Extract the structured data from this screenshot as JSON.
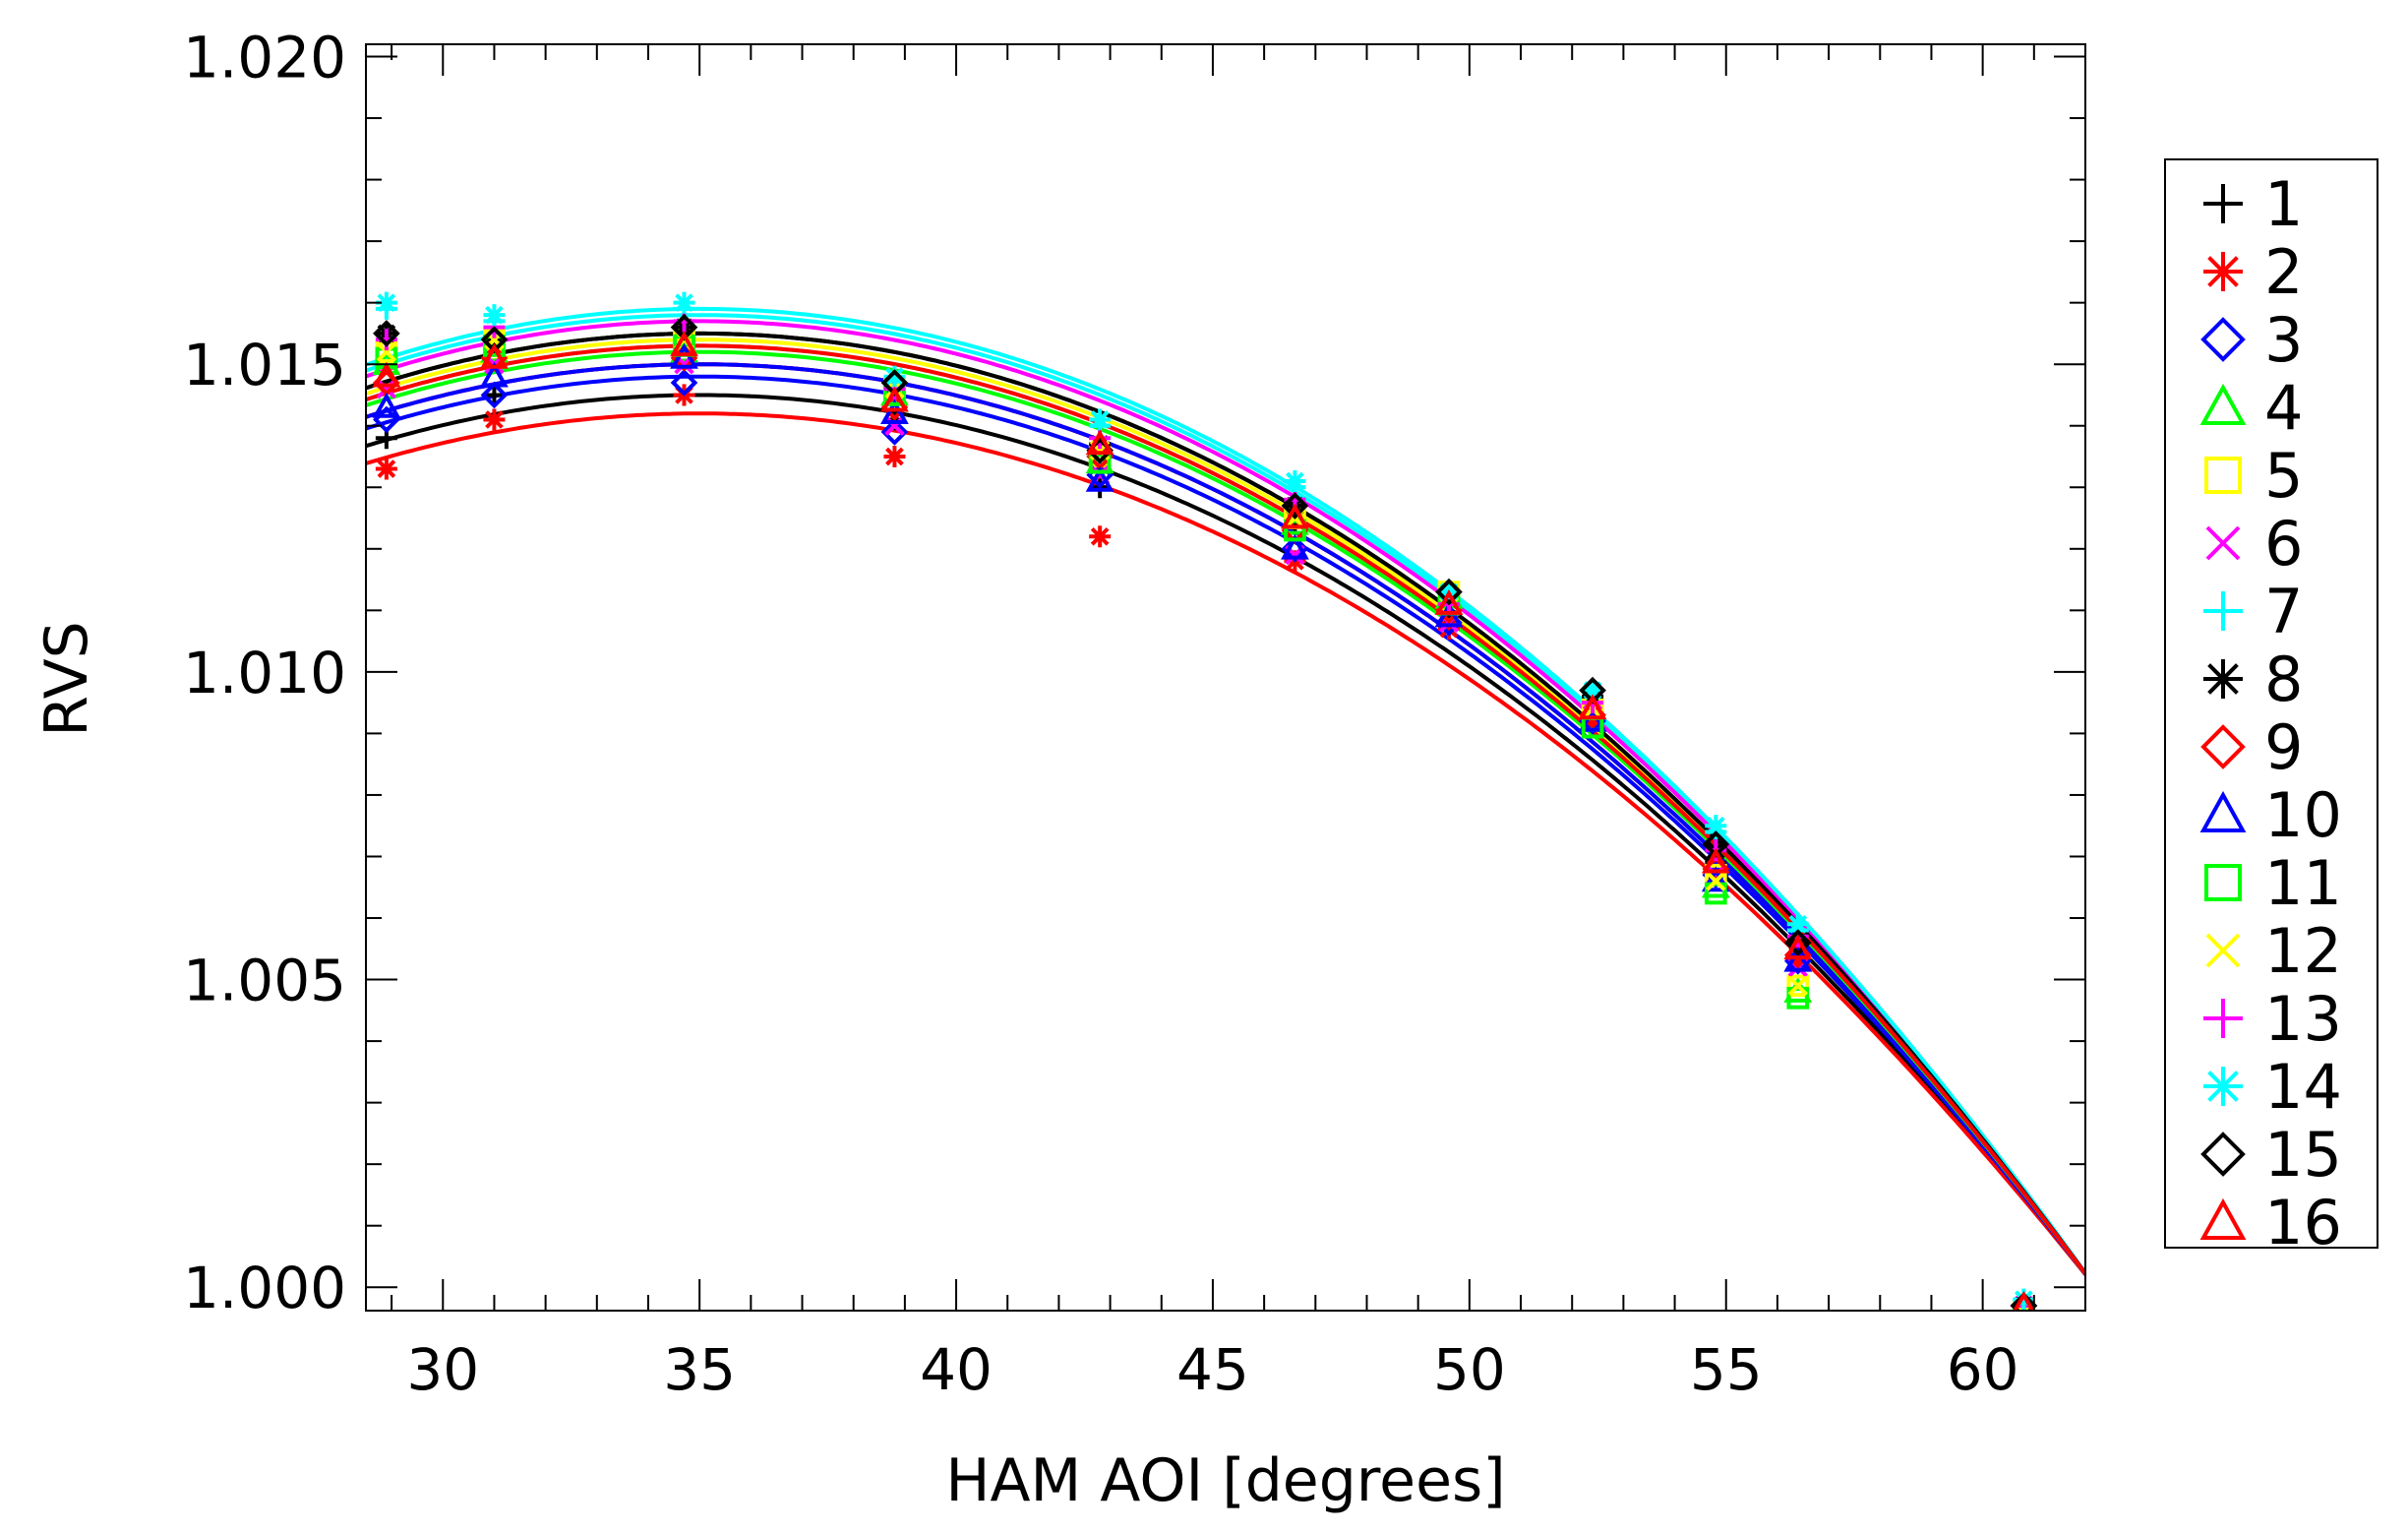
{
  "chart_data": {
    "type": "scatter",
    "title": "",
    "xlabel": "HAM AOI [degrees]",
    "ylabel": "RVS",
    "xlim": [
      28.5,
      62
    ],
    "ylim": [
      0.99962,
      1.0202
    ],
    "xticks": [
      30,
      35,
      40,
      45,
      50,
      55,
      60
    ],
    "xtick_labels": [
      "30",
      "35",
      "40",
      "45",
      "50",
      "55",
      "60"
    ],
    "yticks": [
      1.0,
      1.005,
      1.01,
      1.015,
      1.02
    ],
    "ytick_labels": [
      "1.000",
      "1.005",
      "1.010",
      "1.015",
      "1.020"
    ],
    "x": [
      28.9,
      31.0,
      34.7,
      38.8,
      42.8,
      46.6,
      49.6,
      52.4,
      54.8,
      56.4,
      60.8
    ],
    "series": [
      {
        "name": "1",
        "color": "#000000",
        "marker": "plus",
        "fit_peak": 1.0145,
        "values": [
          1.0138,
          1.0145,
          1.0145,
          1.0141,
          1.013,
          1.0124,
          1.0108,
          1.0093,
          1.0069,
          1.0054,
          0.9997
        ]
      },
      {
        "name": "2",
        "color": "#ff0000",
        "marker": "asterisk",
        "fit_peak": 1.0142,
        "values": [
          1.0133,
          1.0141,
          1.0145,
          1.0135,
          1.0122,
          1.0118,
          1.0107,
          1.0092,
          1.0068,
          1.0053,
          0.9997
        ]
      },
      {
        "name": "3",
        "color": "#0000ff",
        "marker": "diamond",
        "fit_peak": 1.0148,
        "values": [
          1.0141,
          1.0145,
          1.0147,
          1.0139,
          1.0132,
          1.012,
          1.0108,
          1.0092,
          1.0067,
          1.0053,
          0.9997
        ]
      },
      {
        "name": "4",
        "color": "#00ff00",
        "marker": "triangle",
        "fit_peak": 1.0153,
        "values": [
          1.015,
          1.0152,
          1.0152,
          1.0145,
          1.0134,
          1.0124,
          1.0112,
          1.0092,
          1.0065,
          1.0048,
          0.9995
        ]
      },
      {
        "name": "5",
        "color": "#ffff00",
        "marker": "square",
        "fit_peak": 1.0155,
        "values": [
          1.0152,
          1.0154,
          1.0154,
          1.0146,
          1.0135,
          1.0125,
          1.0113,
          1.0094,
          1.0067,
          1.0049,
          0.9996
        ]
      },
      {
        "name": "6",
        "color": "#ff00ff",
        "marker": "x",
        "fit_peak": 1.015,
        "values": [
          1.0146,
          1.015,
          1.015,
          1.014,
          1.0132,
          1.0119,
          1.0108,
          1.0093,
          1.0067,
          1.0052,
          0.9997
        ]
      },
      {
        "name": "7",
        "color": "#00ffff",
        "marker": "plus",
        "fit_peak": 1.0158,
        "values": [
          1.0159,
          1.0157,
          1.0159,
          1.0147,
          1.014,
          1.013,
          1.0112,
          1.0096,
          1.0074,
          1.0058,
          0.9998
        ]
      },
      {
        "name": "8",
        "color": "#000000",
        "marker": "asterisk",
        "fit_peak": 1.0155,
        "values": [
          1.0155,
          1.0154,
          1.0156,
          1.0146,
          1.0137,
          1.0127,
          1.0112,
          1.0096,
          1.0071,
          1.0056,
          0.9997
        ]
      },
      {
        "name": "9",
        "color": "#ff0000",
        "marker": "diamond",
        "fit_peak": 1.015,
        "values": [
          1.0147,
          1.0151,
          1.0151,
          1.0143,
          1.0135,
          1.0123,
          1.011,
          1.0093,
          1.0068,
          1.0054,
          0.9997
        ]
      },
      {
        "name": "10",
        "color": "#0000ff",
        "marker": "triangle",
        "fit_peak": 1.015,
        "values": [
          1.0143,
          1.0148,
          1.0151,
          1.0142,
          1.0131,
          1.012,
          1.0109,
          1.0092,
          1.0066,
          1.0053,
          0.9997
        ]
      },
      {
        "name": "11",
        "color": "#00ff00",
        "marker": "square",
        "fit_peak": 1.0152,
        "values": [
          1.0151,
          1.0153,
          1.0153,
          1.0145,
          1.0134,
          1.0123,
          1.0111,
          1.0091,
          1.0064,
          1.0047,
          0.9995
        ]
      },
      {
        "name": "12",
        "color": "#ffff00",
        "marker": "x",
        "fit_peak": 1.0154,
        "values": [
          1.0152,
          1.0154,
          1.0154,
          1.0146,
          1.0136,
          1.0125,
          1.0113,
          1.0094,
          1.0066,
          1.0049,
          0.9996
        ]
      },
      {
        "name": "13",
        "color": "#ff00ff",
        "marker": "plus",
        "fit_peak": 1.0157,
        "values": [
          1.0154,
          1.0156,
          1.0157,
          1.0146,
          1.0138,
          1.0128,
          1.0111,
          1.0095,
          1.0071,
          1.0057,
          0.9997
        ]
      },
      {
        "name": "14",
        "color": "#00ffff",
        "marker": "asterisk",
        "fit_peak": 1.0159,
        "values": [
          1.016,
          1.0158,
          1.016,
          1.0148,
          1.0141,
          1.0131,
          1.0113,
          1.0097,
          1.0075,
          1.0059,
          0.9998
        ]
      },
      {
        "name": "15",
        "color": "#000000",
        "marker": "diamond",
        "fit_peak": 1.0155,
        "values": [
          1.0155,
          1.0154,
          1.0156,
          1.0147,
          1.0136,
          1.0127,
          1.0113,
          1.0097,
          1.0072,
          1.0056,
          0.9997
        ]
      },
      {
        "name": "16",
        "color": "#ff0000",
        "marker": "triangle",
        "fit_peak": 1.0153,
        "values": [
          1.0148,
          1.0151,
          1.0153,
          1.0144,
          1.0137,
          1.0125,
          1.0111,
          1.0094,
          1.0069,
          1.0055,
          0.9997
        ]
      }
    ],
    "fit": {
      "type": "quadratic",
      "vertex_x": 35.0,
      "root_x": 62.2
    },
    "legend": {
      "placement": "right",
      "labels": [
        "1",
        "2",
        "3",
        "4",
        "5",
        "6",
        "7",
        "8",
        "9",
        "10",
        "11",
        "12",
        "13",
        "14",
        "15",
        "16"
      ]
    },
    "grid": false
  }
}
